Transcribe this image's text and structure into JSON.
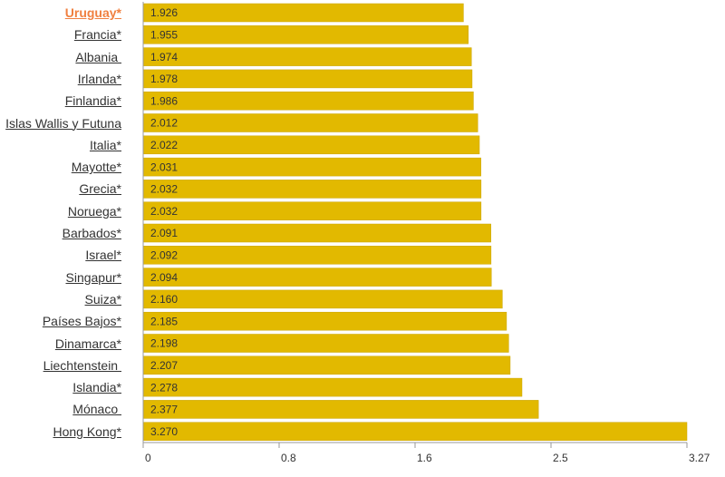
{
  "chart_data": {
    "type": "bar",
    "orientation": "horizontal",
    "color": "#e2b900",
    "highlight_color": "#f08040",
    "categories": [
      "Uruguay*",
      "Francia*",
      "Albania ",
      "Irlanda*",
      "Finlandia*",
      "Islas Wallis y Futuna",
      "Italia*",
      "Mayotte*",
      "Grecia*",
      "Noruega*",
      "Barbados*",
      "Israel*",
      "Singapur*",
      "Suiza*",
      "Países Bajos*",
      "Dinamarca*",
      "Liechtenstein ",
      "Islandia*",
      "Mónaco ",
      "Hong Kong*"
    ],
    "values": [
      1.926,
      1.955,
      1.974,
      1.978,
      1.986,
      2.012,
      2.022,
      2.031,
      2.032,
      2.032,
      2.091,
      2.092,
      2.094,
      2.16,
      2.185,
      2.198,
      2.207,
      2.278,
      2.377,
      3.27
    ],
    "value_labels": [
      "1.926",
      "1.955",
      "1.974",
      "1.978",
      "1.986",
      "2.012",
      "2.022",
      "2.031",
      "2.032",
      "2.032",
      "2.091",
      "2.092",
      "2.094",
      "2.160",
      "2.185",
      "2.198",
      "2.207",
      "2.278",
      "2.377",
      "3.270"
    ],
    "highlighted": "Uruguay*",
    "xlim": [
      0,
      3.27
    ],
    "xticks": [
      0,
      {
        "value": 0.8175,
        "label": "0.8"
      },
      {
        "value": 1.635,
        "label": "1.6"
      },
      {
        "value": 2.4525,
        "label": "2.5"
      },
      3.27
    ]
  }
}
